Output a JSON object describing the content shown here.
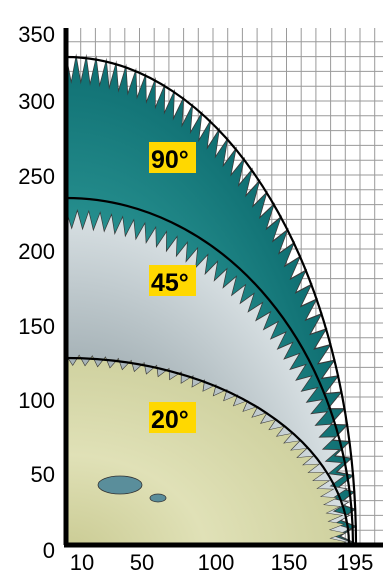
{
  "chart_data": {
    "type": "other",
    "description_free": true,
    "y_ticks": [
      "350",
      "300",
      "250",
      "200",
      "150",
      "100",
      "50",
      "0"
    ],
    "x_ticks": [
      "10",
      "50",
      "100",
      "150",
      "195"
    ],
    "blades": [
      {
        "label": "90°",
        "color": "#1f8f8f"
      },
      {
        "label": "45°",
        "color": "#b9c4c8"
      },
      {
        "label": "20°",
        "color": "#d5d6a5"
      }
    ]
  }
}
